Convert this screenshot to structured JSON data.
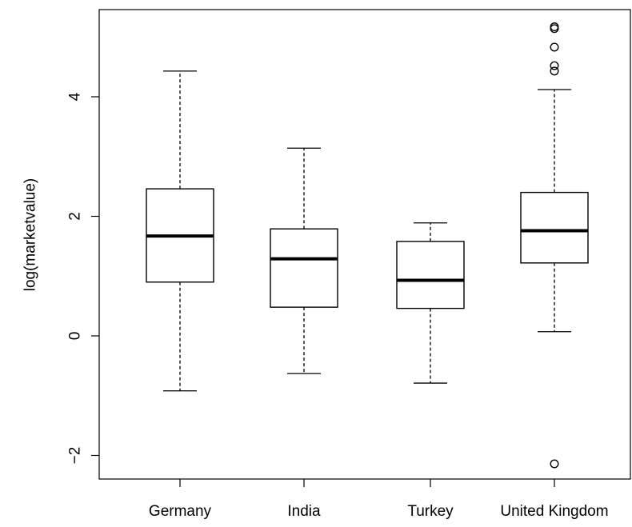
{
  "chart_data": {
    "type": "boxplot",
    "title": "",
    "xlabel": "",
    "ylabel": "log(marketvalue)",
    "ylim": [
      -2.4,
      5.5
    ],
    "yticks": [
      -2,
      0,
      2,
      4
    ],
    "ytick_labels": [
      "−2",
      "0",
      "2",
      "4"
    ],
    "grid": false,
    "categories": [
      "Germany",
      "India",
      "Turkey",
      "United Kingdom"
    ],
    "boxes": [
      {
        "category": "Germany",
        "whisker_low": -0.92,
        "q1": 0.9,
        "median": 1.67,
        "q3": 2.46,
        "whisker_high": 4.43,
        "outliers": []
      },
      {
        "category": "India",
        "whisker_low": -0.63,
        "q1": 0.48,
        "median": 1.29,
        "q3": 1.79,
        "whisker_high": 3.14,
        "outliers": []
      },
      {
        "category": "Turkey",
        "whisker_low": -0.79,
        "q1": 0.46,
        "median": 0.93,
        "q3": 1.58,
        "whisker_high": 1.89,
        "outliers": []
      },
      {
        "category": "United Kingdom",
        "whisker_low": 0.07,
        "q1": 1.22,
        "median": 1.76,
        "q3": 2.4,
        "whisker_high": 4.12,
        "outliers": [
          5.17,
          5.14,
          4.83,
          4.52,
          4.43,
          -2.14
        ]
      }
    ]
  }
}
